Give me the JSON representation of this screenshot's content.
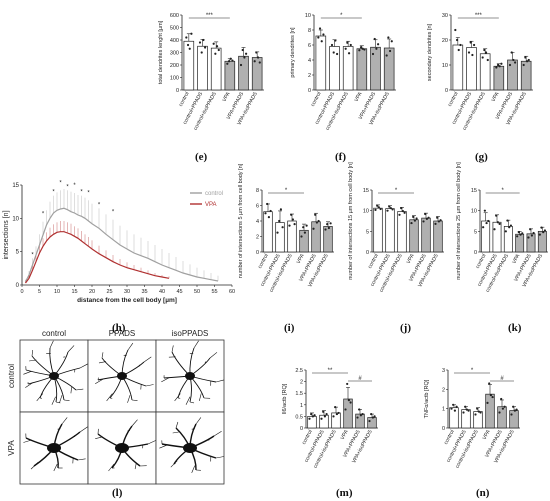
{
  "panel_labels": [
    "(e)",
    "(f)",
    "(g)",
    "(h)",
    "(i)",
    "(j)",
    "(k)",
    "(l)",
    "(m)",
    "(n)"
  ],
  "cell_grid": {
    "columns": [
      "control",
      "PPADS",
      "isoPPADS"
    ],
    "rows": [
      "control",
      "VPA"
    ]
  },
  "chart_data": [
    {
      "id": "e",
      "type": "bar",
      "ylabel": "total dendrites lenght [µm]",
      "ylim": [
        0,
        600
      ],
      "yticks": [
        0,
        100,
        200,
        300,
        400,
        500,
        600
      ],
      "categories": [
        "control",
        "control+PPADS",
        "control+isoPPADS",
        "VPA",
        "VPA+PPADS",
        "VPA+isoPPADS"
      ],
      "values": [
        390,
        350,
        335,
        230,
        270,
        260
      ],
      "errors": [
        60,
        55,
        50,
        20,
        70,
        45
      ],
      "bar_colors": [
        "#ffffff",
        "#ffffff",
        "#ffffff",
        "#b0b0b0",
        "#b0b0b0",
        "#b0b0b0"
      ],
      "points": [
        [
          420,
          360,
          330,
          450
        ],
        [
          380,
          300,
          400,
          340
        ],
        [
          370,
          290,
          350,
          320
        ],
        [
          210,
          230,
          250,
          235
        ],
        [
          200,
          320,
          260,
          290
        ],
        [
          230,
          300,
          260,
          220
        ]
      ],
      "significance": [
        {
          "from": 0,
          "to": 3,
          "label": "***"
        }
      ]
    },
    {
      "id": "f",
      "type": "bar",
      "ylabel": "primary dendrites [n]",
      "ylim": [
        0,
        10
      ],
      "yticks": [
        0,
        2,
        4,
        6,
        8,
        10
      ],
      "categories": [
        "control",
        "control+PPADS",
        "control+isoPPADS",
        "VPA",
        "VPA+PPADS",
        "VPA+isoPPADS"
      ],
      "values": [
        7.2,
        5.8,
        5.8,
        5.5,
        5.7,
        5.6
      ],
      "errors": [
        0.8,
        0.9,
        0.7,
        0.4,
        1.0,
        1.2
      ],
      "bar_colors": [
        "#ffffff",
        "#ffffff",
        "#ffffff",
        "#b0b0b0",
        "#b0b0b0",
        "#b0b0b0"
      ],
      "points": [
        [
          7.0,
          8.2,
          6.5,
          7.4
        ],
        [
          6.0,
          5.0,
          6.6,
          4.8
        ],
        [
          5.5,
          6.3,
          4.9,
          6.0
        ],
        [
          5.3,
          5.7,
          5.5,
          5.4
        ],
        [
          4.8,
          6.8,
          5.5,
          6.1
        ],
        [
          4.6,
          7.0,
          5.2,
          6.5
        ]
      ],
      "significance": [
        {
          "from": 0,
          "to": 3,
          "label": "*"
        }
      ]
    },
    {
      "id": "g",
      "type": "bar",
      "ylabel": "secondary dendrites [n]",
      "ylim": [
        0,
        30
      ],
      "yticks": [
        0,
        10,
        20,
        30
      ],
      "categories": [
        "control",
        "control+PPADS",
        "control+isoPPADS",
        "VPA",
        "VPA+PPADS",
        "VPA+isoPPADS"
      ],
      "values": [
        18,
        17,
        14.5,
        9.5,
        12,
        11.5
      ],
      "errors": [
        3,
        2.5,
        2,
        1,
        3,
        2
      ],
      "bar_colors": [
        "#ffffff",
        "#ffffff",
        "#ffffff",
        "#b0b0b0",
        "#b0b0b0",
        "#b0b0b0"
      ],
      "points": [
        [
          24,
          20,
          16,
          18
        ],
        [
          15,
          19,
          14,
          18
        ],
        [
          13,
          16,
          15,
          12
        ],
        [
          9,
          10,
          9.5,
          10.5
        ],
        [
          10,
          15,
          12,
          11
        ],
        [
          10,
          13,
          11.5,
          12
        ]
      ],
      "significance": [
        {
          "from": 0,
          "to": 3,
          "label": "***"
        }
      ]
    },
    {
      "id": "h",
      "type": "line",
      "ylabel": "intersections [n]",
      "xlabel": "distance from the cell body [µm]",
      "xlim": [
        0,
        60
      ],
      "ylim": [
        0,
        15
      ],
      "xticks": [
        0,
        5,
        10,
        15,
        20,
        25,
        30,
        35,
        40,
        45,
        50,
        55,
        60
      ],
      "yticks": [
        0,
        5,
        10,
        15
      ],
      "series": [
        {
          "name": "control",
          "color": "#a0a0a0",
          "x": [
            1,
            2,
            3,
            4,
            5,
            6,
            7,
            8,
            9,
            10,
            11,
            12,
            13,
            14,
            15,
            16,
            17,
            18,
            19,
            20,
            22,
            24,
            26,
            28,
            30,
            32,
            34,
            36,
            38,
            40,
            42,
            44,
            46,
            48,
            50,
            52,
            54,
            56
          ],
          "y": [
            0.5,
            1.5,
            3,
            4.5,
            6,
            7.5,
            9,
            10,
            10.8,
            11.2,
            11.4,
            11.5,
            11.3,
            11,
            10.8,
            10.5,
            10.3,
            10,
            9.6,
            9.2,
            8.5,
            7.6,
            6.8,
            6,
            5.4,
            4.8,
            4.4,
            4,
            3.5,
            3,
            2.6,
            2.2,
            1.8,
            1.5,
            1.2,
            1,
            0.8,
            0.6
          ],
          "error": [
            0.3,
            0.6,
            1,
            1.3,
            1.6,
            2,
            2.2,
            2.5,
            2.6,
            2.7,
            2.8,
            2.9,
            2.9,
            3,
            3,
            3,
            3.1,
            3.1,
            3.1,
            3,
            3,
            3,
            3,
            2.9,
            2.8,
            2.8,
            2.7,
            2.6,
            2.5,
            2.4,
            2.2,
            2,
            1.8,
            1.6,
            1.4,
            1.2,
            1,
            0.8
          ]
        },
        {
          "name": "VPA",
          "color": "#b03030",
          "x": [
            1,
            2,
            3,
            4,
            5,
            6,
            7,
            8,
            9,
            10,
            11,
            12,
            13,
            14,
            15,
            16,
            17,
            18,
            19,
            20,
            22,
            24,
            26,
            28,
            30,
            32,
            34,
            36,
            38,
            40,
            42
          ],
          "y": [
            0.3,
            1,
            2.2,
            3.5,
            4.8,
            5.8,
            6.6,
            7.2,
            7.6,
            7.9,
            8,
            8,
            7.8,
            7.6,
            7.3,
            7,
            6.6,
            6.2,
            5.8,
            5.4,
            4.7,
            4.1,
            3.5,
            3,
            2.6,
            2.3,
            2,
            1.7,
            1.4,
            1.2,
            1
          ],
          "error": [
            0.2,
            0.4,
            0.6,
            0.8,
            1,
            1.2,
            1.3,
            1.4,
            1.5,
            1.5,
            1.6,
            1.6,
            1.6,
            1.6,
            1.5,
            1.5,
            1.5,
            1.4,
            1.4,
            1.3,
            1.2,
            1.1,
            1,
            0.9,
            0.8,
            0.7,
            0.6,
            0.5,
            0.4,
            0.3,
            0.3
          ]
        }
      ],
      "significance_x": [
        3,
        6,
        9,
        11,
        13,
        15,
        17,
        19,
        22,
        26
      ],
      "significance_label": "*",
      "legend_placement": "top-right"
    },
    {
      "id": "i",
      "type": "bar",
      "ylabel": "number of intersections 5 µm from cell body [n]",
      "ylim": [
        0,
        8
      ],
      "yticks": [
        0,
        2,
        4,
        6,
        8
      ],
      "categories": [
        "control",
        "control+PPADS",
        "control+isoPPADS",
        "VPA",
        "VPA+PPADS",
        "VPA+isoPPADS"
      ],
      "values": [
        5.2,
        3.8,
        4.0,
        2.8,
        3.9,
        3.3
      ],
      "errors": [
        1.0,
        1.5,
        0.9,
        0.8,
        1.1,
        0.6
      ],
      "bar_colors": [
        "#ffffff",
        "#ffffff",
        "#ffffff",
        "#b0b0b0",
        "#b0b0b0",
        "#b0b0b0"
      ],
      "points": [
        [
          5.0,
          6.2,
          4.5,
          5.3
        ],
        [
          2.5,
          4.0,
          5.5,
          3.2
        ],
        [
          3.4,
          4.8,
          4.2,
          3.6
        ],
        [
          2.0,
          3.2,
          2.5,
          3.4
        ],
        [
          3.0,
          4.8,
          3.8,
          4.0
        ],
        [
          2.9,
          3.6,
          3.1,
          3.7
        ]
      ],
      "significance": [
        {
          "from": 0,
          "to": 3,
          "label": "*"
        }
      ]
    },
    {
      "id": "j",
      "type": "bar",
      "ylabel": "number of intersections 15 µm from cell body [n]",
      "ylim": [
        0,
        15
      ],
      "yticks": [
        0,
        5,
        10,
        15
      ],
      "categories": [
        "control",
        "control+PPADS",
        "control+isoPPADS",
        "VPA",
        "VPA+PPADS",
        "VPA+isoPPADS"
      ],
      "values": [
        10.6,
        10.5,
        9.8,
        7.8,
        8.2,
        7.5
      ],
      "errors": [
        0.8,
        0.7,
        1.0,
        1.0,
        1.2,
        1.1
      ],
      "bar_colors": [
        "#ffffff",
        "#ffffff",
        "#ffffff",
        "#b0b0b0",
        "#b0b0b0",
        "#b0b0b0"
      ],
      "points": [
        [
          10.2,
          11.2,
          10.8,
          10.4
        ],
        [
          10.0,
          11.0,
          10.6,
          10.3
        ],
        [
          9.0,
          10.6,
          9.9,
          9.5
        ],
        [
          7.0,
          8.5,
          7.6,
          8.1
        ],
        [
          7.4,
          9.2,
          8.0,
          8.3
        ],
        [
          6.8,
          8.3,
          7.4,
          7.7
        ]
      ],
      "significance": [
        {
          "from": 0,
          "to": 3,
          "label": "*"
        }
      ]
    },
    {
      "id": "k",
      "type": "bar",
      "ylabel": "number of intersections 25 µm from cell body [n]",
      "ylim": [
        0,
        15
      ],
      "yticks": [
        0,
        5,
        10,
        15
      ],
      "categories": [
        "control",
        "control+PPADS",
        "control+isoPPADS",
        "VPA",
        "VPA+PPADS",
        "VPA+isoPPADS"
      ],
      "values": [
        7.5,
        7.2,
        6.2,
        4.3,
        4.4,
        5.0
      ],
      "errors": [
        2.0,
        1.8,
        1.5,
        0.7,
        1.2,
        1.0
      ],
      "bar_colors": [
        "#ffffff",
        "#ffffff",
        "#ffffff",
        "#b0b0b0",
        "#b0b0b0",
        "#b0b0b0"
      ],
      "points": [
        [
          6.0,
          10.0,
          7.0,
          7.5
        ],
        [
          5.5,
          8.8,
          7.2,
          6.8
        ],
        [
          5.0,
          7.6,
          6.0,
          6.4
        ],
        [
          3.8,
          4.8,
          4.2,
          4.5
        ],
        [
          3.5,
          5.5,
          4.0,
          4.6
        ],
        [
          4.2,
          5.9,
          4.8,
          5.2
        ]
      ],
      "significance": [
        {
          "from": 0,
          "to": 3,
          "label": "*"
        }
      ]
    },
    {
      "id": "m",
      "type": "bar",
      "ylabel": "Il6/actb [RQ]",
      "ylim": [
        0,
        2.5
      ],
      "yticks": [
        0.0,
        0.5,
        1.0,
        1.5,
        2.0,
        2.5
      ],
      "categories": [
        "control",
        "control+PPADS",
        "control+isoPPADS",
        "VPA",
        "VPA+PPADS",
        "VPA+isoPPADS"
      ],
      "values": [
        0.5,
        0.55,
        0.65,
        1.25,
        0.6,
        0.45
      ],
      "errors": [
        0.15,
        0.2,
        0.25,
        0.5,
        0.2,
        0.15
      ],
      "bar_colors": [
        "#ffffff",
        "#ffffff",
        "#ffffff",
        "#b0b0b0",
        "#b0b0b0",
        "#b0b0b0"
      ],
      "points": [
        [
          0.4,
          0.6,
          0.5,
          0.55
        ],
        [
          0.4,
          0.7,
          0.5,
          0.6
        ],
        [
          0.5,
          0.9,
          0.6,
          0.65
        ],
        [
          0.8,
          1.9,
          1.2,
          1.1
        ],
        [
          0.45,
          0.8,
          0.55,
          0.6
        ],
        [
          0.3,
          0.6,
          0.45,
          0.5
        ]
      ],
      "significance": [
        {
          "from": 0,
          "to": 3,
          "label": "**"
        },
        {
          "from": 3,
          "to": 5,
          "label": "#"
        }
      ]
    },
    {
      "id": "n",
      "type": "bar",
      "ylabel": "TNFα/actb [RQ]",
      "ylim": [
        0,
        3
      ],
      "yticks": [
        0,
        1,
        2,
        3
      ],
      "categories": [
        "control",
        "control+PPADS",
        "control+isoPPADS",
        "VPA",
        "VPA+PPADS",
        "VPA+isoPPADS"
      ],
      "values": [
        1.05,
        0.95,
        0.85,
        1.75,
        1.1,
        0.9
      ],
      "errors": [
        0.15,
        0.15,
        0.2,
        0.5,
        0.35,
        0.2
      ],
      "bar_colors": [
        "#ffffff",
        "#ffffff",
        "#ffffff",
        "#b0b0b0",
        "#b0b0b0",
        "#b0b0b0"
      ],
      "points": [
        [
          1.0,
          1.2,
          0.9,
          1.1
        ],
        [
          0.8,
          1.1,
          0.95,
          0.9
        ],
        [
          0.7,
          1.0,
          0.85,
          0.8
        ],
        [
          1.3,
          2.3,
          1.7,
          1.6
        ],
        [
          0.8,
          1.5,
          1.0,
          1.1
        ],
        [
          0.7,
          1.1,
          0.9,
          0.95
        ]
      ],
      "significance": [
        {
          "from": 0,
          "to": 3,
          "label": "*"
        },
        {
          "from": 3,
          "to": 5,
          "label": "#"
        }
      ]
    }
  ]
}
